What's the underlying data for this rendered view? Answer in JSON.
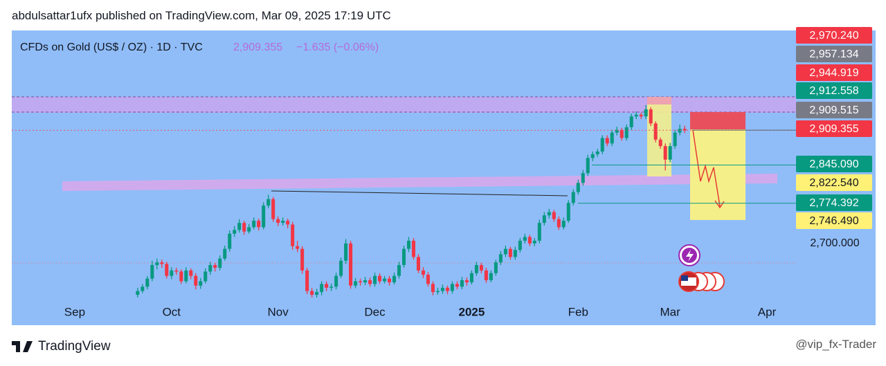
{
  "header": "abdulsattar1ufx published on TradingView.com, Mar 09, 2025 17:19 UTC",
  "chart_data": {
    "type": "candlestick",
    "title": "CFDs on Gold (US$ / OZ) · 1D · TVC",
    "last_price": "2,909.355",
    "change": "−1.635 (−0.06%)",
    "up_color": "#089981",
    "down_color": "#f23645",
    "xlim": [
      -26,
      136
    ],
    "xticks": [
      {
        "value": -13,
        "label": "Sep"
      },
      {
        "value": 7,
        "label": "Oct"
      },
      {
        "value": 29,
        "label": "Nov"
      },
      {
        "value": 49,
        "label": "Dec"
      },
      {
        "value": 69,
        "label": "2025"
      },
      {
        "value": 91,
        "label": "Feb"
      },
      {
        "value": 110,
        "label": "Mar"
      },
      {
        "value": 130,
        "label": "Apr"
      }
    ],
    "ylim": [
      2591,
      3094
    ],
    "yticks": [
      {
        "value": 2700,
        "label": "2,700.000"
      }
    ],
    "price_labels": [
      {
        "value": 2970.24,
        "label": "2,970.240",
        "color": "#f23645"
      },
      {
        "value": 2957.134,
        "label": "2,957.134",
        "color": "#787b86"
      },
      {
        "value": 2944.919,
        "label": "2,944.919",
        "color": "#f23645"
      },
      {
        "value": 2912.558,
        "label": "2,912.558",
        "color": "#089981"
      },
      {
        "value": 2909.515,
        "label": "2,909.515",
        "color": "#787b86"
      },
      {
        "value": 2909.355,
        "label": "2,909.355",
        "color": "#f23645"
      },
      {
        "value": 2845.09,
        "label": "2,845.090",
        "color": "#089981"
      },
      {
        "value": 2822.54,
        "label": "2,822.540",
        "color": "#fff176"
      },
      {
        "value": 2774.392,
        "label": "2,774.392",
        "color": "#089981"
      },
      {
        "value": 2746.49,
        "label": "2,746.490",
        "color": "#fff176"
      }
    ],
    "ohlc": [
      [
        2605,
        2618,
        2600,
        2612
      ],
      [
        2612,
        2625,
        2608,
        2620
      ],
      [
        2620,
        2640,
        2615,
        2635
      ],
      [
        2635,
        2668,
        2630,
        2660
      ],
      [
        2660,
        2672,
        2652,
        2665
      ],
      [
        2665,
        2670,
        2655,
        2662
      ],
      [
        2662,
        2666,
        2635,
        2640
      ],
      [
        2640,
        2656,
        2634,
        2650
      ],
      [
        2650,
        2655,
        2642,
        2648
      ],
      [
        2648,
        2652,
        2625,
        2630
      ],
      [
        2630,
        2656,
        2626,
        2650
      ],
      [
        2650,
        2654,
        2634,
        2640
      ],
      [
        2640,
        2645,
        2615,
        2622
      ],
      [
        2622,
        2636,
        2616,
        2630
      ],
      [
        2630,
        2654,
        2626,
        2648
      ],
      [
        2648,
        2666,
        2642,
        2660
      ],
      [
        2660,
        2664,
        2648,
        2655
      ],
      [
        2655,
        2678,
        2650,
        2672
      ],
      [
        2672,
        2696,
        2668,
        2690
      ],
      [
        2690,
        2724,
        2685,
        2718
      ],
      [
        2718,
        2732,
        2712,
        2725
      ],
      [
        2725,
        2745,
        2720,
        2738
      ],
      [
        2738,
        2742,
        2716,
        2722
      ],
      [
        2722,
        2736,
        2718,
        2730
      ],
      [
        2730,
        2748,
        2726,
        2742
      ],
      [
        2742,
        2746,
        2724,
        2730
      ],
      [
        2730,
        2776,
        2726,
        2770
      ],
      [
        2770,
        2790,
        2765,
        2782
      ],
      [
        2782,
        2786,
        2740,
        2745
      ],
      [
        2745,
        2750,
        2732,
        2738
      ],
      [
        2738,
        2748,
        2733,
        2742
      ],
      [
        2742,
        2746,
        2728,
        2735
      ],
      [
        2735,
        2740,
        2688,
        2695
      ],
      [
        2695,
        2705,
        2684,
        2690
      ],
      [
        2690,
        2695,
        2644,
        2650
      ],
      [
        2650,
        2655,
        2606,
        2612
      ],
      [
        2612,
        2618,
        2600,
        2605
      ],
      [
        2605,
        2616,
        2600,
        2610
      ],
      [
        2610,
        2630,
        2604,
        2625
      ],
      [
        2625,
        2630,
        2612,
        2618
      ],
      [
        2618,
        2626,
        2612,
        2620
      ],
      [
        2620,
        2646,
        2615,
        2640
      ],
      [
        2640,
        2674,
        2636,
        2668
      ],
      [
        2668,
        2708,
        2662,
        2700
      ],
      [
        2700,
        2705,
        2616,
        2622
      ],
      [
        2622,
        2636,
        2617,
        2630
      ],
      [
        2630,
        2635,
        2622,
        2628
      ],
      [
        2628,
        2638,
        2623,
        2632
      ],
      [
        2632,
        2637,
        2620,
        2625
      ],
      [
        2625,
        2646,
        2620,
        2640
      ],
      [
        2640,
        2645,
        2625,
        2630
      ],
      [
        2630,
        2640,
        2626,
        2635
      ],
      [
        2635,
        2640,
        2622,
        2628
      ],
      [
        2628,
        2646,
        2624,
        2640
      ],
      [
        2640,
        2666,
        2635,
        2660
      ],
      [
        2660,
        2696,
        2655,
        2690
      ],
      [
        2690,
        2712,
        2684,
        2705
      ],
      [
        2705,
        2710,
        2670,
        2675
      ],
      [
        2675,
        2680,
        2645,
        2650
      ],
      [
        2650,
        2656,
        2636,
        2642
      ],
      [
        2642,
        2647,
        2620,
        2625
      ],
      [
        2625,
        2630,
        2604,
        2610
      ],
      [
        2610,
        2618,
        2605,
        2612
      ],
      [
        2612,
        2624,
        2607,
        2618
      ],
      [
        2618,
        2622,
        2606,
        2612
      ],
      [
        2612,
        2630,
        2607,
        2625
      ],
      [
        2625,
        2630,
        2615,
        2620
      ],
      [
        2620,
        2638,
        2615,
        2632
      ],
      [
        2632,
        2637,
        2622,
        2628
      ],
      [
        2628,
        2650,
        2624,
        2645
      ],
      [
        2645,
        2666,
        2640,
        2660
      ],
      [
        2660,
        2664,
        2645,
        2650
      ],
      [
        2650,
        2655,
        2627,
        2632
      ],
      [
        2632,
        2650,
        2628,
        2645
      ],
      [
        2645,
        2670,
        2640,
        2665
      ],
      [
        2665,
        2686,
        2660,
        2680
      ],
      [
        2680,
        2696,
        2675,
        2690
      ],
      [
        2690,
        2694,
        2670,
        2675
      ],
      [
        2675,
        2694,
        2670,
        2688
      ],
      [
        2688,
        2710,
        2683,
        2705
      ],
      [
        2705,
        2718,
        2700,
        2712
      ],
      [
        2712,
        2716,
        2695,
        2700
      ],
      [
        2700,
        2710,
        2695,
        2705
      ],
      [
        2705,
        2744,
        2700,
        2738
      ],
      [
        2738,
        2758,
        2733,
        2752
      ],
      [
        2752,
        2764,
        2746,
        2758
      ],
      [
        2758,
        2762,
        2740,
        2745
      ],
      [
        2745,
        2750,
        2725,
        2730
      ],
      [
        2730,
        2748,
        2726,
        2742
      ],
      [
        2742,
        2780,
        2738,
        2775
      ],
      [
        2775,
        2800,
        2770,
        2795
      ],
      [
        2795,
        2818,
        2790,
        2812
      ],
      [
        2812,
        2836,
        2807,
        2830
      ],
      [
        2830,
        2864,
        2825,
        2858
      ],
      [
        2858,
        2870,
        2852,
        2865
      ],
      [
        2865,
        2875,
        2860,
        2870
      ],
      [
        2870,
        2900,
        2865,
        2895
      ],
      [
        2895,
        2900,
        2880,
        2885
      ],
      [
        2885,
        2910,
        2880,
        2905
      ],
      [
        2905,
        2916,
        2900,
        2910
      ],
      [
        2910,
        2914,
        2890,
        2895
      ],
      [
        2895,
        2920,
        2890,
        2915
      ],
      [
        2915,
        2940,
        2910,
        2935
      ],
      [
        2935,
        2944,
        2930,
        2938
      ],
      [
        2938,
        2942,
        2930,
        2935
      ],
      [
        2935,
        2956,
        2930,
        2948
      ],
      [
        2948,
        2952,
        2917,
        2922
      ],
      [
        2922,
        2926,
        2887,
        2892
      ],
      [
        2892,
        2896,
        2875,
        2880
      ],
      [
        2880,
        2885,
        2835,
        2855
      ],
      [
        2855,
        2886,
        2850,
        2880
      ],
      [
        2880,
        2910,
        2875,
        2905
      ],
      [
        2905,
        2920,
        2900,
        2912
      ],
      [
        2912,
        2918,
        2904,
        2909
      ]
    ]
  },
  "footer": {
    "logo": "TradingView",
    "watermark": "@vip_fx-Trader"
  }
}
